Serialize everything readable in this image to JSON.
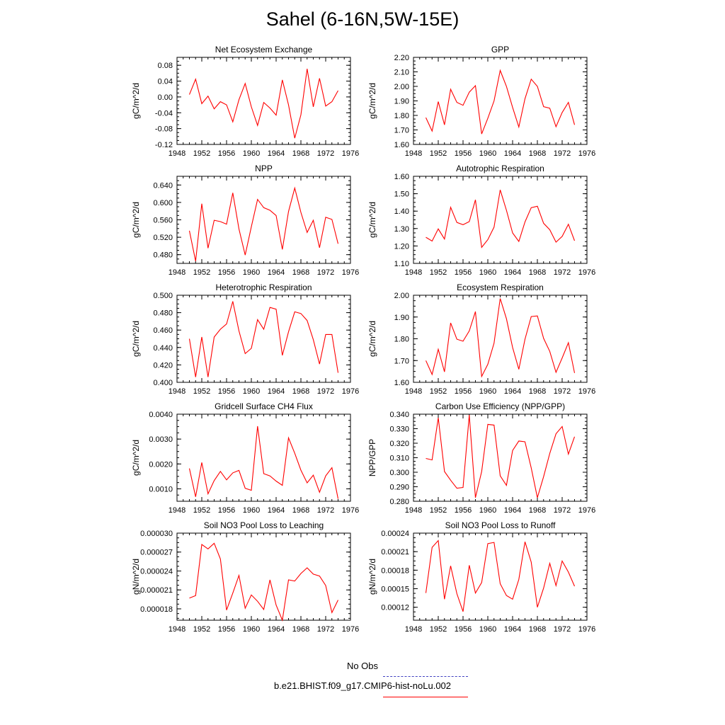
{
  "title": "Sahel (6-16N,5W-15E)",
  "legend": [
    {
      "label": "No Obs",
      "color": "#4040c0",
      "dash": "dashed"
    },
    {
      "label": "b.e21.BHIST.f09_g17.CMIP6-hist-noLu.002",
      "color": "#ff0000",
      "dash": "solid"
    }
  ],
  "chart_data": [
    {
      "type": "line",
      "title": "Net Ecosystem Exchange",
      "ylabel": "gC/m^2/d",
      "xlim": [
        1948,
        1976
      ],
      "xticks": [
        1948,
        1952,
        1956,
        1960,
        1964,
        1968,
        1972,
        1976
      ],
      "ylim": [
        -0.12,
        0.1
      ],
      "yticks": [
        "-0.12",
        "-0.08",
        "-0.04",
        "0.00",
        "0.04",
        "0.08"
      ],
      "x": [
        1950,
        1951,
        1952,
        1953,
        1954,
        1955,
        1956,
        1957,
        1958,
        1959,
        1960,
        1961,
        1962,
        1963,
        1964,
        1965,
        1966,
        1967,
        1968,
        1969,
        1970,
        1971,
        1972,
        1973,
        1974
      ],
      "values": [
        0.006,
        0.045,
        -0.017,
        0.002,
        -0.03,
        -0.012,
        -0.02,
        -0.063,
        -0.007,
        0.034,
        -0.025,
        -0.072,
        -0.014,
        -0.028,
        -0.046,
        0.043,
        -0.02,
        -0.104,
        -0.045,
        0.071,
        -0.025,
        0.047,
        -0.023,
        -0.012,
        0.016
      ]
    },
    {
      "type": "line",
      "title": "GPP",
      "ylabel": "gC/m^2/d",
      "xlim": [
        1948,
        1976
      ],
      "xticks": [
        1948,
        1952,
        1956,
        1960,
        1964,
        1968,
        1972,
        1976
      ],
      "ylim": [
        1.6,
        2.2
      ],
      "yticks": [
        "1.60",
        "1.70",
        "1.80",
        "1.90",
        "2.00",
        "2.10",
        "2.20"
      ],
      "x": [
        1950,
        1951,
        1952,
        1953,
        1954,
        1955,
        1956,
        1957,
        1958,
        1959,
        1960,
        1961,
        1962,
        1963,
        1964,
        1965,
        1966,
        1967,
        1968,
        1969,
        1970,
        1971,
        1972,
        1973,
        1974
      ],
      "values": [
        1.785,
        1.692,
        1.895,
        1.735,
        1.98,
        1.89,
        1.87,
        1.96,
        2.005,
        1.672,
        1.78,
        1.9,
        2.11,
        2.0,
        1.855,
        1.72,
        1.915,
        2.05,
        2.0,
        1.86,
        1.85,
        1.722,
        1.82,
        1.89,
        1.735
      ]
    },
    {
      "type": "line",
      "title": "NPP",
      "ylabel": "gC/m^2/d",
      "xlim": [
        1948,
        1976
      ],
      "xticks": [
        1948,
        1952,
        1956,
        1960,
        1964,
        1968,
        1972,
        1976
      ],
      "ylim": [
        0.46,
        0.66
      ],
      "yticks": [
        "0.480",
        "0.520",
        "0.560",
        "0.600",
        "0.640"
      ],
      "x": [
        1950,
        1951,
        1952,
        1953,
        1954,
        1955,
        1956,
        1957,
        1958,
        1959,
        1960,
        1961,
        1962,
        1963,
        1964,
        1965,
        1966,
        1967,
        1968,
        1969,
        1970,
        1971,
        1972,
        1973,
        1974
      ],
      "values": [
        0.535,
        0.465,
        0.597,
        0.495,
        0.559,
        0.556,
        0.55,
        0.622,
        0.539,
        0.479,
        0.544,
        0.607,
        0.588,
        0.582,
        0.57,
        0.492,
        0.579,
        0.633,
        0.577,
        0.531,
        0.559,
        0.496,
        0.566,
        0.561,
        0.505
      ]
    },
    {
      "type": "line",
      "title": "Autotrophic Respiration",
      "ylabel": "gC/m^2/d",
      "xlim": [
        1948,
        1976
      ],
      "xticks": [
        1948,
        1952,
        1956,
        1960,
        1964,
        1968,
        1972,
        1976
      ],
      "ylim": [
        1.1,
        1.6
      ],
      "yticks": [
        "1.10",
        "1.20",
        "1.30",
        "1.40",
        "1.50",
        "1.60"
      ],
      "x": [
        1950,
        1951,
        1952,
        1953,
        1954,
        1955,
        1956,
        1957,
        1958,
        1959,
        1960,
        1961,
        1962,
        1963,
        1964,
        1965,
        1966,
        1967,
        1968,
        1969,
        1970,
        1971,
        1972,
        1973,
        1974
      ],
      "values": [
        1.25,
        1.228,
        1.298,
        1.24,
        1.422,
        1.335,
        1.322,
        1.34,
        1.465,
        1.192,
        1.236,
        1.308,
        1.522,
        1.405,
        1.275,
        1.226,
        1.338,
        1.42,
        1.428,
        1.33,
        1.293,
        1.222,
        1.255,
        1.325,
        1.23
      ]
    },
    {
      "type": "line",
      "title": "Heterotrophic Respiration",
      "ylabel": "gC/m^2/d",
      "xlim": [
        1948,
        1976
      ],
      "xticks": [
        1948,
        1952,
        1956,
        1960,
        1964,
        1968,
        1972,
        1976
      ],
      "ylim": [
        0.4,
        0.5
      ],
      "yticks": [
        "0.400",
        "0.420",
        "0.440",
        "0.460",
        "0.480",
        "0.500"
      ],
      "x": [
        1950,
        1951,
        1952,
        1953,
        1954,
        1955,
        1956,
        1957,
        1958,
        1959,
        1960,
        1961,
        1962,
        1963,
        1964,
        1965,
        1966,
        1967,
        1968,
        1969,
        1970,
        1971,
        1972,
        1973,
        1974
      ],
      "values": [
        0.45,
        0.406,
        0.452,
        0.406,
        0.452,
        0.461,
        0.467,
        0.493,
        0.459,
        0.433,
        0.439,
        0.472,
        0.461,
        0.486,
        0.484,
        0.431,
        0.458,
        0.481,
        0.479,
        0.471,
        0.449,
        0.421,
        0.455,
        0.455,
        0.411
      ]
    },
    {
      "type": "line",
      "title": "Ecosystem Respiration",
      "ylabel": "gC/m^2/d",
      "xlim": [
        1948,
        1976
      ],
      "xticks": [
        1948,
        1952,
        1956,
        1960,
        1964,
        1968,
        1972,
        1976
      ],
      "ylim": [
        1.6,
        2.0
      ],
      "yticks": [
        "1.60",
        "1.70",
        "1.80",
        "1.90",
        "2.00"
      ],
      "x": [
        1950,
        1951,
        1952,
        1953,
        1954,
        1955,
        1956,
        1957,
        1958,
        1959,
        1960,
        1961,
        1962,
        1963,
        1964,
        1965,
        1966,
        1967,
        1968,
        1969,
        1970,
        1971,
        1972,
        1973,
        1974
      ],
      "values": [
        1.7,
        1.636,
        1.752,
        1.648,
        1.873,
        1.798,
        1.789,
        1.836,
        1.925,
        1.627,
        1.683,
        1.78,
        1.985,
        1.892,
        1.76,
        1.66,
        1.798,
        1.902,
        1.905,
        1.802,
        1.742,
        1.646,
        1.712,
        1.782,
        1.643
      ]
    },
    {
      "type": "line",
      "title": "Gridcell Surface CH4 Flux",
      "ylabel": "gC/m^2/d",
      "xlim": [
        1948,
        1976
      ],
      "xticks": [
        1948,
        1952,
        1956,
        1960,
        1964,
        1968,
        1972,
        1976
      ],
      "ylim": [
        0.0005,
        0.004
      ],
      "yticks": [
        "0.0010",
        "0.0020",
        "0.0030",
        "0.0040"
      ],
      "x": [
        1950,
        1951,
        1952,
        1953,
        1954,
        1955,
        1956,
        1957,
        1958,
        1959,
        1960,
        1961,
        1962,
        1963,
        1964,
        1965,
        1966,
        1967,
        1968,
        1969,
        1970,
        1971,
        1972,
        1973,
        1974
      ],
      "values": [
        0.00182,
        0.00068,
        0.00206,
        0.0008,
        0.00133,
        0.0017,
        0.00136,
        0.00164,
        0.00174,
        0.00102,
        0.00094,
        0.00352,
        0.00161,
        0.00152,
        0.00131,
        0.00114,
        0.00305,
        0.00243,
        0.00175,
        0.00124,
        0.00155,
        0.00086,
        0.00152,
        0.00185,
        0.0006
      ]
    },
    {
      "type": "line",
      "title": "Carbon Use Efficiency (NPP/GPP)",
      "ylabel": "NPP/GPP",
      "xlim": [
        1948,
        1976
      ],
      "xticks": [
        1948,
        1952,
        1956,
        1960,
        1964,
        1968,
        1972,
        1976
      ],
      "ylim": [
        0.28,
        0.34
      ],
      "yticks": [
        "0.280",
        "0.290",
        "0.300",
        "0.310",
        "0.320",
        "0.330",
        "0.340"
      ],
      "x": [
        1950,
        1951,
        1952,
        1953,
        1954,
        1955,
        1956,
        1957,
        1958,
        1959,
        1960,
        1961,
        1962,
        1963,
        1964,
        1965,
        1966,
        1967,
        1968,
        1969,
        1970,
        1971,
        1972,
        1973,
        1974
      ],
      "values": [
        0.3095,
        0.3085,
        0.3375,
        0.3005,
        0.2945,
        0.289,
        0.2895,
        0.3395,
        0.2825,
        0.3005,
        0.333,
        0.3325,
        0.2975,
        0.291,
        0.315,
        0.3215,
        0.321,
        0.303,
        0.2825,
        0.297,
        0.313,
        0.3265,
        0.3315,
        0.3125,
        0.3245
      ]
    },
    {
      "type": "line",
      "title": "Soil NO3 Pool Loss to Leaching",
      "ylabel": "gN/m^2/d",
      "xlim": [
        1948,
        1976
      ],
      "xticks": [
        1948,
        1952,
        1956,
        1960,
        1964,
        1968,
        1972,
        1976
      ],
      "ylim": [
        1.62e-05,
        3e-05
      ],
      "yticks": [
        "0.000018",
        "0.000021",
        "0.000024",
        "0.000027",
        "0.000030"
      ],
      "x": [
        1950,
        1951,
        1952,
        1953,
        1954,
        1955,
        1956,
        1957,
        1958,
        1959,
        1960,
        1961,
        1962,
        1963,
        1964,
        1965,
        1966,
        1967,
        1968,
        1969,
        1970,
        1971,
        1972,
        1973,
        1974
      ],
      "values": [
        1.97e-05,
        2.01e-05,
        2.82e-05,
        2.75e-05,
        2.84e-05,
        2.59e-05,
        1.78e-05,
        2.05e-05,
        2.33e-05,
        1.81e-05,
        2.02e-05,
        1.92e-05,
        1.79e-05,
        2.26e-05,
        1.86e-05,
        1.62e-05,
        2.26e-05,
        2.24e-05,
        2.36e-05,
        2.45e-05,
        2.35e-05,
        2.32e-05,
        2.17e-05,
        1.74e-05,
        1.94e-05
      ]
    },
    {
      "type": "line",
      "title": "Soil NO3 Pool Loss to Runoff",
      "ylabel": "gN/m^2/d",
      "xlim": [
        1948,
        1976
      ],
      "xticks": [
        1948,
        1952,
        1956,
        1960,
        1964,
        1968,
        1972,
        1976
      ],
      "ylim": [
        9.9e-05,
        0.00024
      ],
      "yticks": [
        "0.00012",
        "0.00015",
        "0.00018",
        "0.00021",
        "0.00024"
      ],
      "x": [
        1950,
        1951,
        1952,
        1953,
        1954,
        1955,
        1956,
        1957,
        1958,
        1959,
        1960,
        1961,
        1962,
        1963,
        1964,
        1965,
        1966,
        1967,
        1968,
        1969,
        1970,
        1971,
        1972,
        1973,
        1974
      ],
      "values": [
        0.000143,
        0.000217,
        0.000228,
        0.000133,
        0.000187,
        0.000142,
        0.000113,
        0.000188,
        0.000143,
        0.00016,
        0.000223,
        0.000225,
        0.000158,
        0.000139,
        0.000133,
        0.000165,
        0.000226,
        0.000193,
        0.00012,
        0.000151,
        0.000191,
        0.000155,
        0.000195,
        0.000177,
        0.000154
      ]
    }
  ]
}
